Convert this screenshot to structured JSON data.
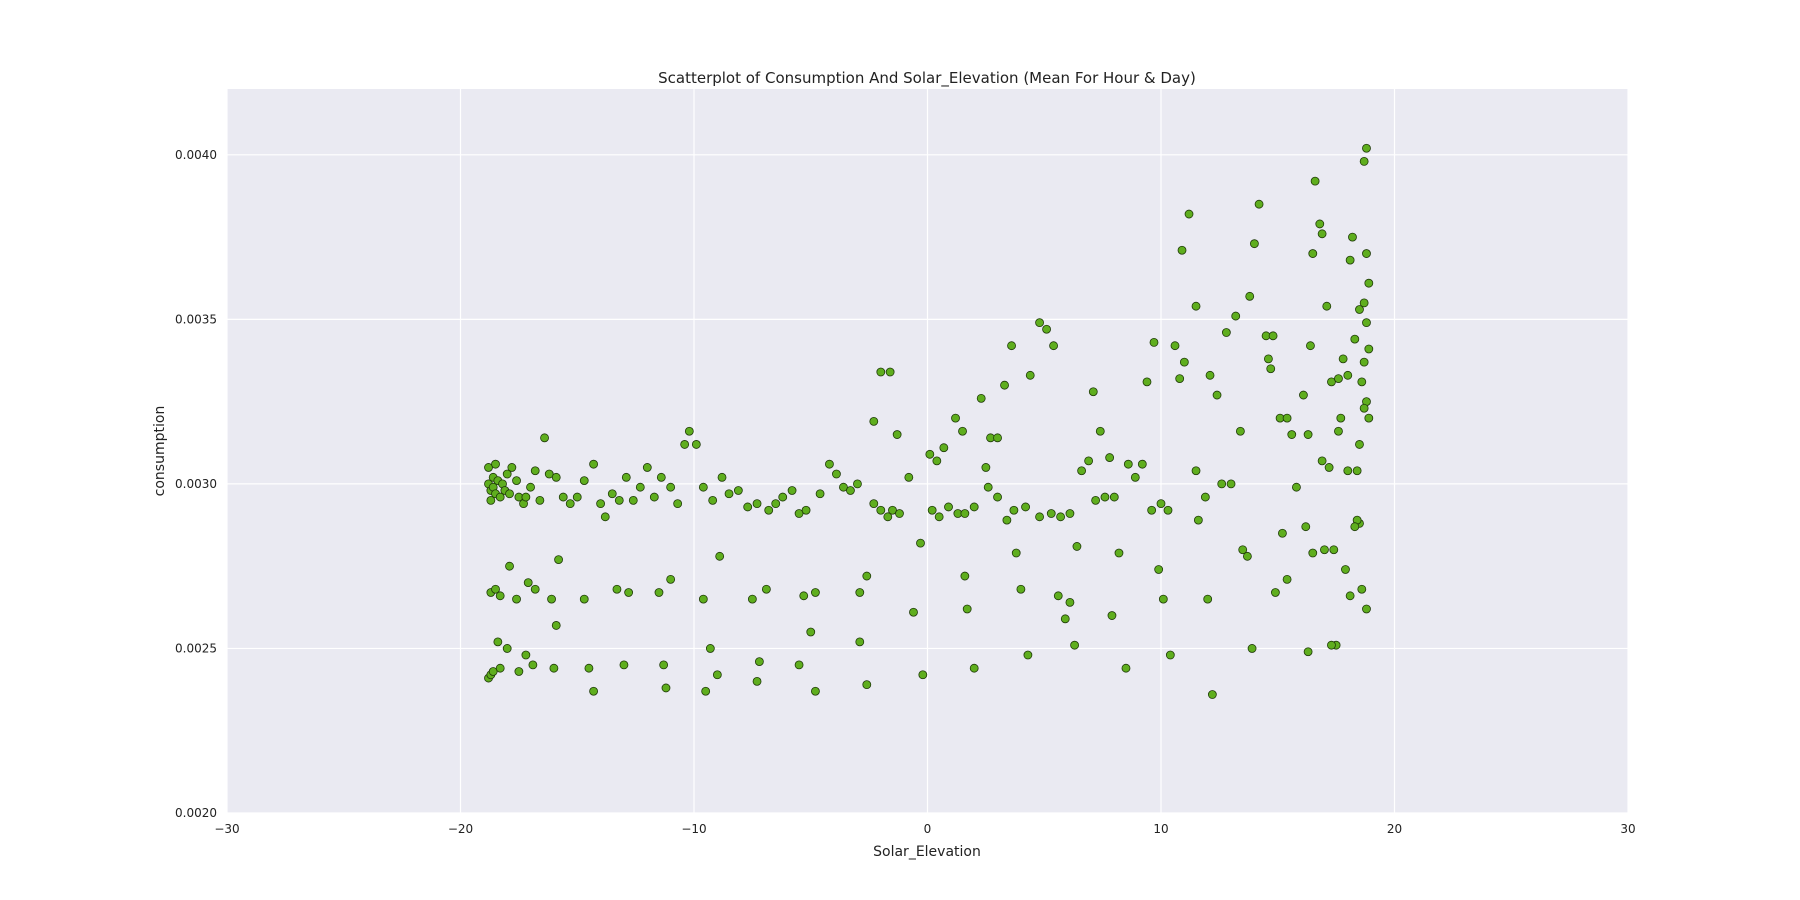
{
  "chart_data": {
    "type": "scatter",
    "title": "Scatterplot of Consumption And Solar_Elevation (Mean For Hour & Day)",
    "xlabel": "Solar_Elevation",
    "ylabel": "consumption",
    "xlim": [
      -30,
      30
    ],
    "ylim": [
      0.002,
      0.0042
    ],
    "xticks": [
      "−30",
      "−20",
      "−10",
      "0",
      "10",
      "20",
      "30"
    ],
    "xtick_values": [
      -30,
      -20,
      -10,
      0,
      10,
      20,
      30
    ],
    "yticks": [
      "0.0020",
      "0.0025",
      "0.0030",
      "0.0035",
      "0.0040"
    ],
    "ytick_values": [
      0.002,
      0.0025,
      0.003,
      0.0035,
      0.004
    ],
    "grid": true,
    "colors": {
      "background": "#eaeaf2",
      "grid": "#ffffff",
      "point_fill": "#5fae1e",
      "point_edge": "#1f3a09"
    },
    "points": [
      [
        -18.8,
        0.003
      ],
      [
        -18.8,
        0.00305
      ],
      [
        -18.7,
        0.00298
      ],
      [
        -18.7,
        0.00295
      ],
      [
        -18.6,
        0.00302
      ],
      [
        -18.6,
        0.00299
      ],
      [
        -18.5,
        0.00306
      ],
      [
        -18.5,
        0.00297
      ],
      [
        -18.4,
        0.00301
      ],
      [
        -18.3,
        0.00296
      ],
      [
        -18.2,
        0.003
      ],
      [
        -18.1,
        0.00298
      ],
      [
        -18.0,
        0.00303
      ],
      [
        -17.9,
        0.00297
      ],
      [
        -17.8,
        0.00305
      ],
      [
        -17.6,
        0.00301
      ],
      [
        -17.5,
        0.00296
      ],
      [
        -17.3,
        0.00294
      ],
      [
        -17.2,
        0.00296
      ],
      [
        -17.0,
        0.00299
      ],
      [
        -16.8,
        0.00304
      ],
      [
        -16.6,
        0.00295
      ],
      [
        -16.4,
        0.00314
      ],
      [
        -16.2,
        0.00303
      ],
      [
        -15.9,
        0.00302
      ],
      [
        -15.6,
        0.00296
      ],
      [
        -15.3,
        0.00294
      ],
      [
        -15.0,
        0.00296
      ],
      [
        -14.7,
        0.00301
      ],
      [
        -14.3,
        0.00306
      ],
      [
        -14.0,
        0.00294
      ],
      [
        -13.8,
        0.0029
      ],
      [
        -13.5,
        0.00297
      ],
      [
        -13.2,
        0.00295
      ],
      [
        -12.9,
        0.00302
      ],
      [
        -12.6,
        0.00295
      ],
      [
        -12.3,
        0.00299
      ],
      [
        -12.0,
        0.00305
      ],
      [
        -11.7,
        0.00296
      ],
      [
        -11.4,
        0.00302
      ],
      [
        -11.0,
        0.00299
      ],
      [
        -10.7,
        0.00294
      ],
      [
        -10.4,
        0.00312
      ],
      [
        -10.2,
        0.00316
      ],
      [
        -9.9,
        0.00312
      ],
      [
        -9.6,
        0.00299
      ],
      [
        -9.2,
        0.00295
      ],
      [
        -8.8,
        0.00302
      ],
      [
        -8.5,
        0.00297
      ],
      [
        -8.1,
        0.00298
      ],
      [
        -7.7,
        0.00293
      ],
      [
        -7.3,
        0.00294
      ],
      [
        -6.8,
        0.00292
      ],
      [
        -6.5,
        0.00294
      ],
      [
        -6.2,
        0.00296
      ],
      [
        -5.8,
        0.00298
      ],
      [
        -5.5,
        0.00291
      ],
      [
        -5.2,
        0.00292
      ],
      [
        -4.6,
        0.00297
      ],
      [
        -4.2,
        0.00306
      ],
      [
        -3.9,
        0.00303
      ],
      [
        -3.6,
        0.00299
      ],
      [
        -3.3,
        0.00298
      ],
      [
        -3.0,
        0.003
      ],
      [
        -2.3,
        0.00294
      ],
      [
        -2.0,
        0.00292
      ],
      [
        -1.7,
        0.0029
      ],
      [
        -1.5,
        0.00292
      ],
      [
        -1.2,
        0.00291
      ],
      [
        -0.8,
        0.00302
      ],
      [
        0.2,
        0.00292
      ],
      [
        0.5,
        0.0029
      ],
      [
        0.9,
        0.00293
      ],
      [
        1.3,
        0.00291
      ],
      [
        1.6,
        0.00291
      ],
      [
        2.0,
        0.00293
      ],
      [
        2.6,
        0.00299
      ],
      [
        3.0,
        0.00296
      ],
      [
        3.4,
        0.00289
      ],
      [
        3.7,
        0.00292
      ],
      [
        4.2,
        0.00293
      ],
      [
        4.8,
        0.0029
      ],
      [
        5.3,
        0.00291
      ],
      [
        5.7,
        0.0029
      ],
      [
        6.1,
        0.00291
      ],
      [
        6.6,
        0.00304
      ],
      [
        6.9,
        0.00307
      ],
      [
        7.2,
        0.00295
      ],
      [
        7.6,
        0.00296
      ],
      [
        8.0,
        0.00296
      ],
      [
        8.6,
        0.00306
      ],
      [
        8.9,
        0.00302
      ],
      [
        9.2,
        0.00306
      ],
      [
        9.6,
        0.00292
      ],
      [
        10.0,
        0.00294
      ],
      [
        10.3,
        0.00292
      ],
      [
        11.5,
        0.00304
      ],
      [
        11.9,
        0.00296
      ],
      [
        12.6,
        0.003
      ],
      [
        13.0,
        0.003
      ],
      [
        -18.7,
        0.00267
      ],
      [
        -18.5,
        0.00268
      ],
      [
        -18.3,
        0.00266
      ],
      [
        -17.9,
        0.00275
      ],
      [
        -17.6,
        0.00265
      ],
      [
        -17.1,
        0.0027
      ],
      [
        -16.8,
        0.00268
      ],
      [
        -16.1,
        0.00265
      ],
      [
        -15.8,
        0.00277
      ],
      [
        -15.9,
        0.00257
      ],
      [
        -14.7,
        0.00265
      ],
      [
        -13.3,
        0.00268
      ],
      [
        -12.8,
        0.00267
      ],
      [
        -11.5,
        0.00267
      ],
      [
        -11.0,
        0.00271
      ],
      [
        -9.6,
        0.00265
      ],
      [
        -8.9,
        0.00278
      ],
      [
        -7.5,
        0.00265
      ],
      [
        -6.9,
        0.00268
      ],
      [
        -5.3,
        0.00266
      ],
      [
        -4.8,
        0.00267
      ],
      [
        -5.0,
        0.00255
      ],
      [
        -2.9,
        0.00267
      ],
      [
        -2.6,
        0.00272
      ],
      [
        -0.6,
        0.00261
      ],
      [
        -0.3,
        0.00282
      ],
      [
        1.6,
        0.00272
      ],
      [
        1.7,
        0.00262
      ],
      [
        3.8,
        0.00279
      ],
      [
        4.0,
        0.00268
      ],
      [
        5.6,
        0.00266
      ],
      [
        5.9,
        0.00259
      ],
      [
        6.1,
        0.00264
      ],
      [
        6.4,
        0.00281
      ],
      [
        7.9,
        0.0026
      ],
      [
        8.2,
        0.00279
      ],
      [
        9.9,
        0.00274
      ],
      [
        10.1,
        0.00265
      ],
      [
        11.6,
        0.00289
      ],
      [
        12.0,
        0.00265
      ],
      [
        13.5,
        0.0028
      ],
      [
        13.7,
        0.00278
      ],
      [
        14.9,
        0.00267
      ],
      [
        15.2,
        0.00285
      ],
      [
        15.4,
        0.00271
      ],
      [
        15.8,
        0.00299
      ],
      [
        16.2,
        0.00287
      ],
      [
        16.5,
        0.00279
      ],
      [
        17.0,
        0.0028
      ],
      [
        17.4,
        0.0028
      ],
      [
        17.9,
        0.00274
      ],
      [
        18.1,
        0.00266
      ],
      [
        18.6,
        0.00268
      ],
      [
        18.8,
        0.00262
      ],
      [
        18.5,
        0.00288
      ],
      [
        18.4,
        0.00289
      ],
      [
        18.3,
        0.00287
      ],
      [
        -18.8,
        0.00241
      ],
      [
        -18.7,
        0.00242
      ],
      [
        -18.6,
        0.00243
      ],
      [
        -18.3,
        0.00244
      ],
      [
        -18.4,
        0.00252
      ],
      [
        -18.0,
        0.0025
      ],
      [
        -17.5,
        0.00243
      ],
      [
        -17.2,
        0.00248
      ],
      [
        -16.9,
        0.00245
      ],
      [
        -16.0,
        0.00244
      ],
      [
        -14.5,
        0.00244
      ],
      [
        -14.3,
        0.00237
      ],
      [
        -13.0,
        0.00245
      ],
      [
        -11.3,
        0.00245
      ],
      [
        -11.2,
        0.00238
      ],
      [
        -9.3,
        0.0025
      ],
      [
        -9.0,
        0.00242
      ],
      [
        -7.2,
        0.00246
      ],
      [
        -7.3,
        0.0024
      ],
      [
        -5.5,
        0.00245
      ],
      [
        -4.8,
        0.00237
      ],
      [
        -2.9,
        0.00252
      ],
      [
        -2.6,
        0.00239
      ],
      [
        -0.2,
        0.00242
      ],
      [
        2.0,
        0.00244
      ],
      [
        4.3,
        0.00248
      ],
      [
        6.3,
        0.00251
      ],
      [
        8.5,
        0.00244
      ],
      [
        10.4,
        0.00248
      ],
      [
        12.2,
        0.00236
      ],
      [
        13.9,
        0.0025
      ],
      [
        16.3,
        0.00249
      ],
      [
        17.5,
        0.00251
      ],
      [
        17.3,
        0.00251
      ],
      [
        -9.5,
        0.00237
      ],
      [
        -2.0,
        0.00334
      ],
      [
        -1.6,
        0.00334
      ],
      [
        -1.3,
        0.00315
      ],
      [
        -2.3,
        0.00319
      ],
      [
        0.1,
        0.00309
      ],
      [
        0.4,
        0.00307
      ],
      [
        0.7,
        0.00311
      ],
      [
        1.2,
        0.0032
      ],
      [
        1.5,
        0.00316
      ],
      [
        2.3,
        0.00326
      ],
      [
        2.5,
        0.00305
      ],
      [
        2.7,
        0.00314
      ],
      [
        3.0,
        0.00314
      ],
      [
        3.3,
        0.0033
      ],
      [
        3.6,
        0.00342
      ],
      [
        4.4,
        0.00333
      ],
      [
        4.8,
        0.00349
      ],
      [
        5.1,
        0.00347
      ],
      [
        5.4,
        0.00342
      ],
      [
        7.1,
        0.00328
      ],
      [
        7.4,
        0.00316
      ],
      [
        7.8,
        0.00308
      ],
      [
        9.4,
        0.00331
      ],
      [
        9.7,
        0.00343
      ],
      [
        10.6,
        0.00342
      ],
      [
        10.8,
        0.00332
      ],
      [
        11.0,
        0.00337
      ],
      [
        10.9,
        0.00371
      ],
      [
        11.2,
        0.00382
      ],
      [
        11.5,
        0.00354
      ],
      [
        12.1,
        0.00333
      ],
      [
        12.4,
        0.00327
      ],
      [
        12.8,
        0.00346
      ],
      [
        13.2,
        0.00351
      ],
      [
        13.4,
        0.00316
      ],
      [
        13.8,
        0.00357
      ],
      [
        14.2,
        0.00385
      ],
      [
        14.0,
        0.00373
      ],
      [
        14.5,
        0.00345
      ],
      [
        14.8,
        0.00345
      ],
      [
        14.6,
        0.00338
      ],
      [
        14.7,
        0.00335
      ],
      [
        15.1,
        0.0032
      ],
      [
        15.4,
        0.0032
      ],
      [
        15.6,
        0.00315
      ],
      [
        16.1,
        0.00327
      ],
      [
        16.4,
        0.00342
      ],
      [
        16.6,
        0.00392
      ],
      [
        16.8,
        0.00379
      ],
      [
        16.9,
        0.00376
      ],
      [
        16.5,
        0.0037
      ],
      [
        17.1,
        0.00354
      ],
      [
        17.3,
        0.00331
      ],
      [
        17.6,
        0.00332
      ],
      [
        17.8,
        0.00338
      ],
      [
        18.0,
        0.00333
      ],
      [
        18.2,
        0.00375
      ],
      [
        18.1,
        0.00368
      ],
      [
        18.3,
        0.00344
      ],
      [
        18.5,
        0.00353
      ],
      [
        18.7,
        0.00398
      ],
      [
        18.8,
        0.00402
      ],
      [
        18.8,
        0.0037
      ],
      [
        18.9,
        0.00361
      ],
      [
        18.7,
        0.00355
      ],
      [
        18.8,
        0.00349
      ],
      [
        18.9,
        0.00341
      ],
      [
        18.7,
        0.00337
      ],
      [
        18.6,
        0.00331
      ],
      [
        18.8,
        0.00325
      ],
      [
        18.7,
        0.00323
      ],
      [
        18.9,
        0.0032
      ],
      [
        18.5,
        0.00312
      ],
      [
        18.4,
        0.00304
      ],
      [
        18.0,
        0.00304
      ],
      [
        17.7,
        0.0032
      ],
      [
        17.6,
        0.00316
      ],
      [
        17.2,
        0.00305
      ],
      [
        16.9,
        0.00307
      ],
      [
        16.3,
        0.00315
      ]
    ]
  }
}
